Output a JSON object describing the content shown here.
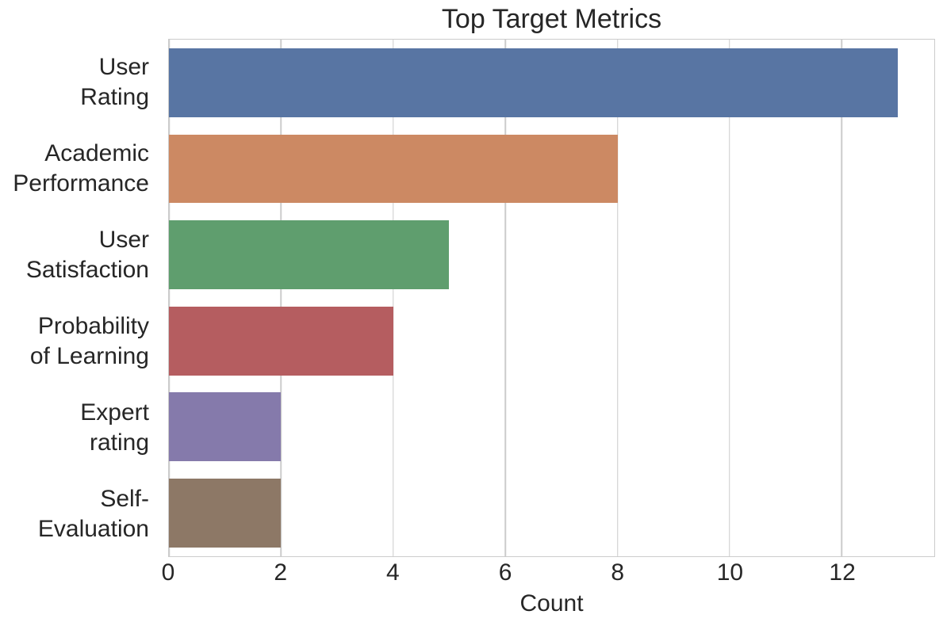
{
  "chart_data": {
    "type": "bar",
    "orientation": "horizontal",
    "title": "Top Target Metrics",
    "xlabel": "Count",
    "ylabel": "",
    "categories": [
      "User\nRating",
      "Academic\nPerformance",
      "User\nSatisfaction",
      "Probability\nof Learning",
      "Expert\nrating",
      "Self-\nEvaluation"
    ],
    "values": [
      13,
      8,
      5,
      4,
      2,
      2
    ],
    "bar_colors": [
      "#5875A3",
      "#CC8963",
      "#5F9E6E",
      "#B55D60",
      "#857AAB",
      "#8D7866"
    ],
    "xticks": [
      0,
      2,
      4,
      6,
      8,
      10,
      12
    ],
    "xlim": [
      0,
      13.65
    ],
    "grid": true,
    "legend": "none",
    "colors": {
      "background": "#ffffff",
      "grid": "#cccccc",
      "spine": "#cccccc",
      "text": "#262626"
    }
  }
}
